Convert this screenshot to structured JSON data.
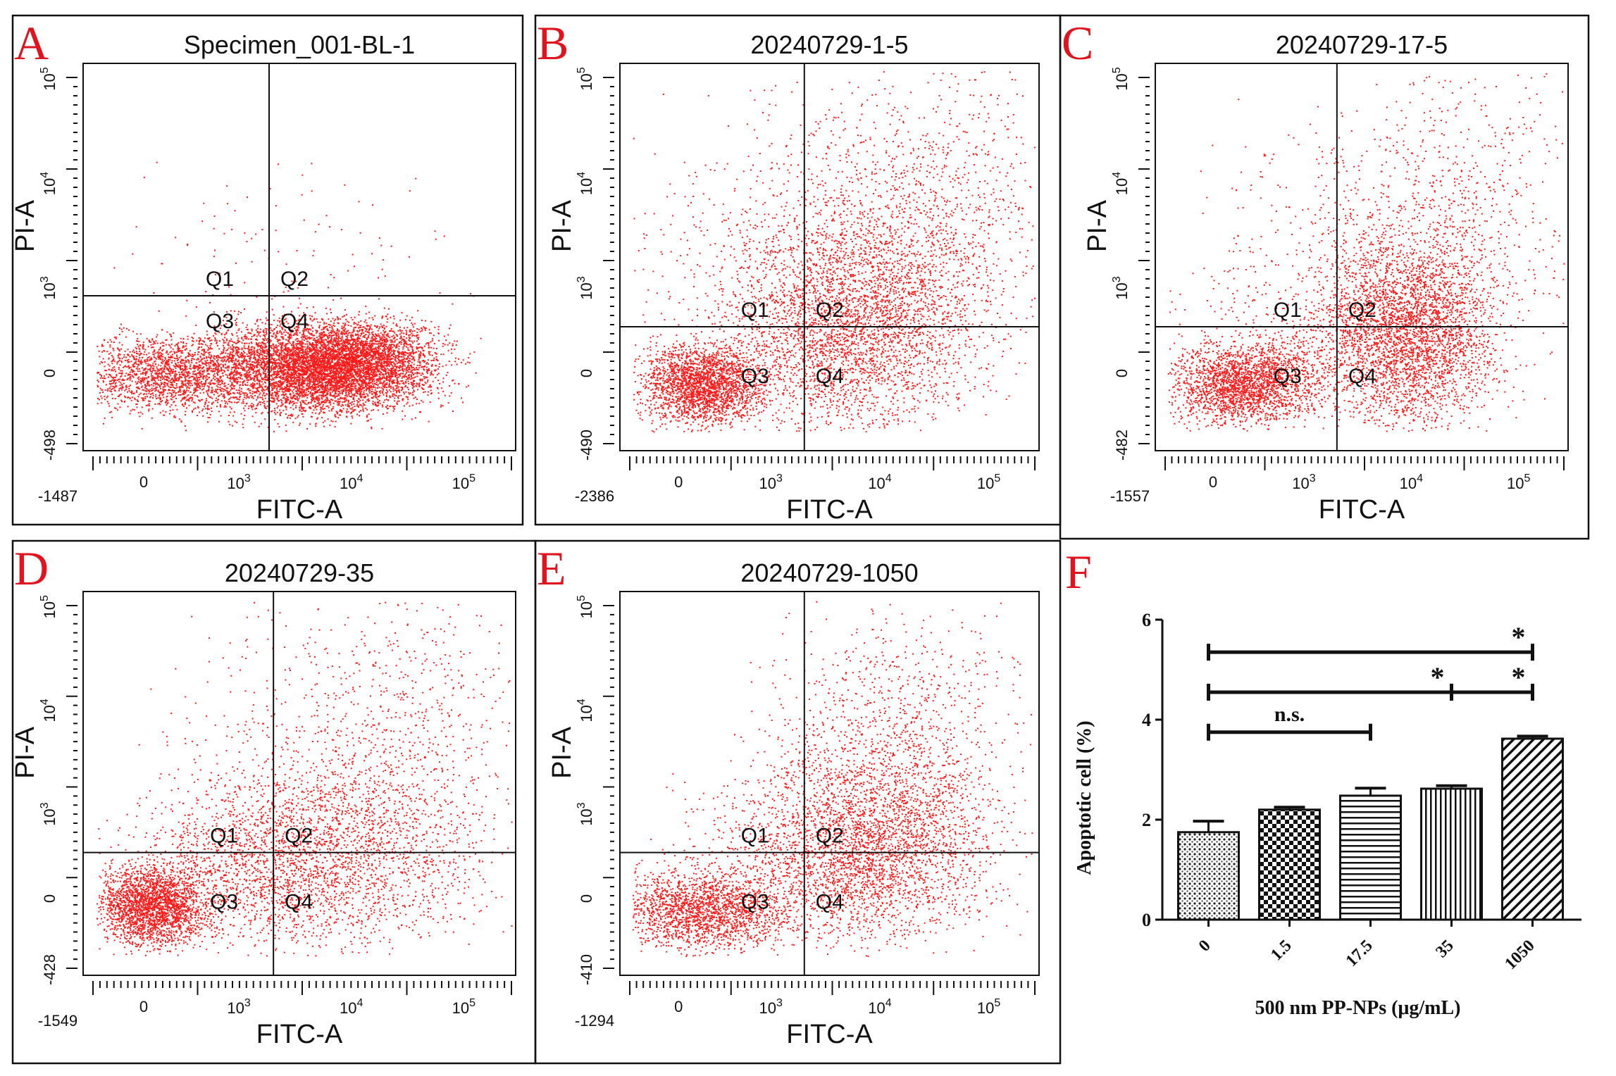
{
  "figure": {
    "panels": [
      {
        "id": "flow-a",
        "label": "A",
        "title": "Specimen_001-BL-1",
        "xlabel": "FITC-A",
        "ylabel": "PI-A",
        "xmin_label": "-1487",
        "ymin_label": "-498",
        "quadrants": [
          "Q1",
          "Q2",
          "Q3",
          "Q4"
        ],
        "gate": {
          "fitc": 1.2,
          "pi": 0.9
        }
      },
      {
        "id": "flow-b",
        "label": "B",
        "title": "20240729-1-5",
        "xlabel": "FITC-A",
        "ylabel": "PI-A",
        "xmin_label": "-2386",
        "ymin_label": "-490",
        "quadrants": [
          "Q1",
          "Q2",
          "Q3",
          "Q4"
        ],
        "gate": {
          "fitc": 0.55,
          "pi": 0.45
        }
      },
      {
        "id": "flow-c",
        "label": "C",
        "title": "20240729-17-5",
        "xlabel": "FITC-A",
        "ylabel": "PI-A",
        "xmin_label": "-1557",
        "ymin_label": "-482",
        "quadrants": [
          "Q1",
          "Q2",
          "Q3",
          "Q4"
        ],
        "gate": {
          "fitc": 0.55,
          "pi": 0.45
        }
      },
      {
        "id": "flow-d",
        "label": "D",
        "title": "20240729-35",
        "xlabel": "FITC-A",
        "ylabel": "PI-A",
        "xmin_label": "-1549",
        "ymin_label": "-428",
        "quadrants": [
          "Q1",
          "Q2",
          "Q3",
          "Q4"
        ],
        "gate": {
          "fitc": 0.55,
          "pi": 0.45
        }
      },
      {
        "id": "flow-e",
        "label": "E",
        "title": "20240729-1050",
        "xlabel": "FITC-A",
        "ylabel": "PI-A",
        "xmin_label": "-1294",
        "ymin_label": "-410",
        "quadrants": [
          "Q1",
          "Q2",
          "Q3",
          "Q4"
        ],
        "gate": {
          "fitc": 0.55,
          "pi": 0.45
        }
      }
    ],
    "axis_ticks": {
      "zero": "0",
      "tens": "10",
      "exps": [
        "3",
        "4",
        "5"
      ],
      "y_exps": [
        "3",
        "4",
        "5"
      ]
    },
    "dot_color": "#ff1a1a"
  },
  "chart_data": {
    "type": "bar",
    "label": "F",
    "categories": [
      "0",
      "1.5",
      "17.5",
      "35",
      "1050"
    ],
    "values": [
      1.75,
      2.2,
      2.48,
      2.62,
      3.62
    ],
    "errors": [
      0.22,
      0.05,
      0.15,
      0.06,
      0.05
    ],
    "patterns": [
      "dots",
      "checker",
      "hlines",
      "vlines",
      "diag"
    ],
    "xlabel": "500 nm PP-NPs (μg/mL)",
    "ylabel": "Apoptotic cell (%)",
    "ylim": [
      0,
      6
    ],
    "yticks": [
      "0",
      "2",
      "4",
      "6"
    ],
    "significance": [
      {
        "from": 0,
        "to": 2,
        "text": "n.s.",
        "level": 3.75
      },
      {
        "from": 0,
        "to": 3,
        "text": "*",
        "level": 4.55
      },
      {
        "from": 3,
        "to": 4,
        "text": "*",
        "level": 4.55
      },
      {
        "from": 0,
        "to": 4,
        "text": "*",
        "level": 5.35
      }
    ]
  }
}
